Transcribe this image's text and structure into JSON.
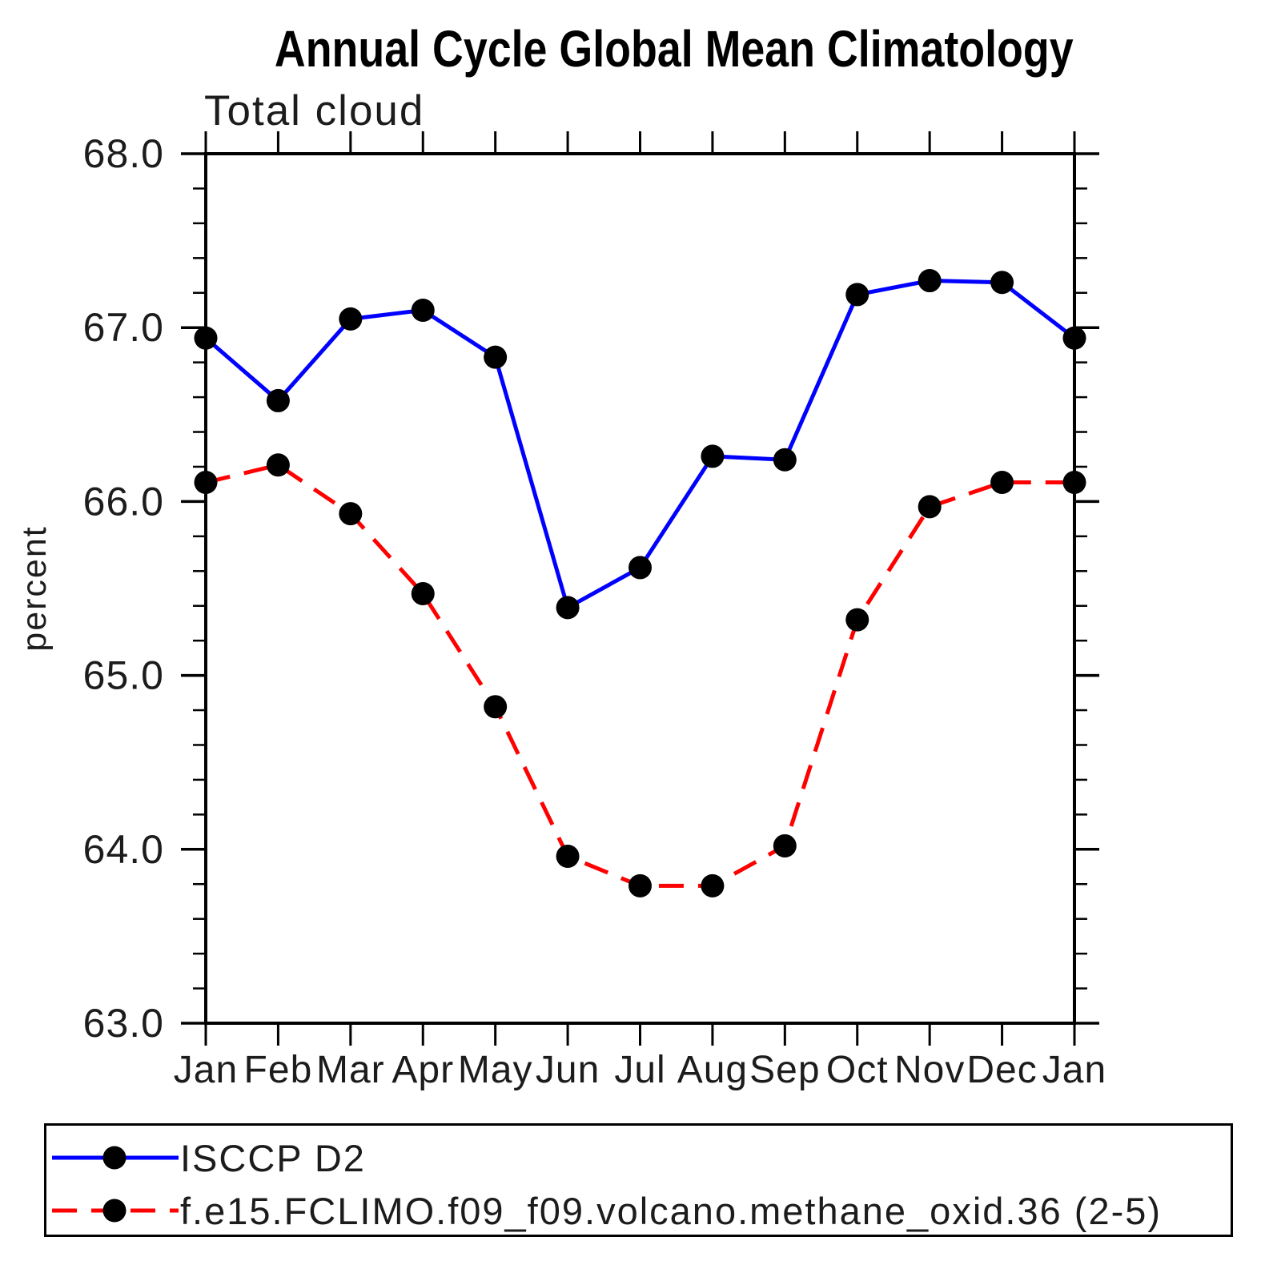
{
  "title": "Annual Cycle Global Mean Climatology",
  "subtitle": "Total cloud",
  "ylabel": "percent",
  "chart_data": {
    "type": "line",
    "categories": [
      "Jan",
      "Feb",
      "Mar",
      "Apr",
      "May",
      "Jun",
      "Jul",
      "Aug",
      "Sep",
      "Oct",
      "Nov",
      "Dec",
      "Jan"
    ],
    "series": [
      {
        "name": "ISCCP D2",
        "color": "#0000ff",
        "line_style": "solid",
        "marker": "filled-circle",
        "marker_color": "#000000",
        "values": [
          66.94,
          66.58,
          67.05,
          67.1,
          66.83,
          65.39,
          65.62,
          66.26,
          66.24,
          67.19,
          67.27,
          67.26,
          66.94
        ]
      },
      {
        "name": "f.e15.FCLIMO.f09_f09.volcano.methane_oxid.36 (2-5)",
        "color": "#ff0000",
        "line_style": "dashed",
        "marker": "filled-circle",
        "marker_color": "#000000",
        "values": [
          66.11,
          66.21,
          65.93,
          65.47,
          64.82,
          63.96,
          63.79,
          63.79,
          64.02,
          65.32,
          65.97,
          66.11,
          66.11
        ]
      }
    ],
    "title": "Annual Cycle Global Mean Climatology",
    "subtitle": "Total cloud",
    "xlabel": "",
    "ylabel": "percent",
    "ylim": [
      63.0,
      68.0
    ],
    "y_major_step": 1.0,
    "y_minor_step": 0.2,
    "y_tick_labels": [
      "68.0",
      "67.0",
      "66.0",
      "65.0",
      "64.0",
      "63.0"
    ],
    "grid": false,
    "tick_direction": "out",
    "legend_position": "bottom"
  },
  "legend": {
    "items": [
      {
        "label": "ISCCP D2"
      },
      {
        "label": "f.e15.FCLIMO.f09_f09.volcano.methane_oxid.36 (2-5)"
      }
    ]
  },
  "colors": {
    "series1": "#0000ff",
    "series2": "#ff0000",
    "marker": "#000000",
    "axis": "#000000",
    "background": "#ffffff"
  }
}
